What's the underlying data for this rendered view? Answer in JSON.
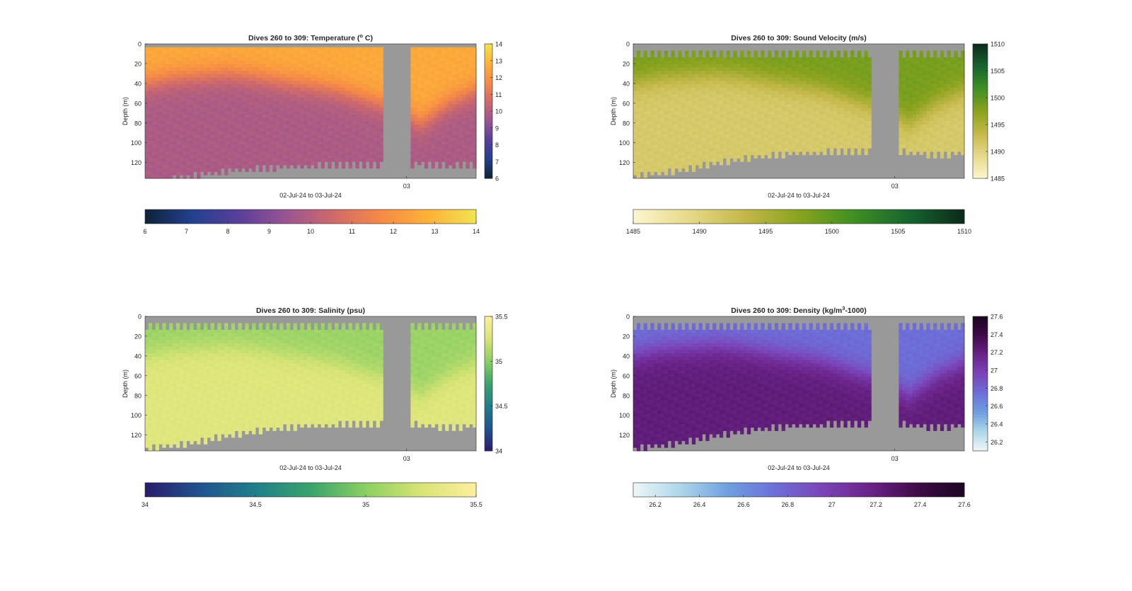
{
  "chart_data": [
    {
      "type": "heatmap",
      "variable": "temperature",
      "title": "Dives 260 to 309: Temperature (",
      "title_sup": "o",
      "title_end": " C)",
      "ylabel": "Depth (m)",
      "xlabel": "02-Jul-24 to 03-Jul-24",
      "xtick_label": "03",
      "xtick_position": 0.79,
      "yticks": [
        0,
        20,
        40,
        60,
        80,
        100,
        120
      ],
      "ylim": [
        0,
        136
      ],
      "gap": [
        0.721,
        0.8
      ],
      "colorbar_ticks": [
        6,
        7,
        8,
        9,
        10,
        11,
        12,
        13,
        14
      ],
      "colorbar_range": [
        6,
        14
      ],
      "colormap": [
        "#0f2237",
        "#23408f",
        "#5a3f9a",
        "#9a5591",
        "#d06a6a",
        "#f68a46",
        "#fdb238",
        "#f2e352"
      ],
      "surface_value": 12.6,
      "deep_value": 9.8,
      "thermocline_depth": [
        40,
        34,
        32,
        30,
        33,
        38,
        42,
        47,
        56,
        64,
        80,
        60,
        47
      ],
      "top_bins": 2,
      "bottom_depth": [
        136,
        134,
        130,
        126,
        124,
        122,
        121,
        120,
        120,
        120,
        119,
        121,
        120
      ]
    },
    {
      "type": "heatmap",
      "variable": "sound_velocity",
      "title": "Dives 260 to 309: Sound Velocity (m/s)",
      "title_sup": "",
      "title_end": "",
      "ylabel": "Depth (m)",
      "xlabel": "02-Jul-24 to 03-Jul-24",
      "xtick_label": "03",
      "xtick_position": 0.79,
      "yticks": [
        0,
        20,
        40,
        60,
        80,
        100,
        120
      ],
      "ylim": [
        0,
        136
      ],
      "gap": [
        0.721,
        0.8
      ],
      "colorbar_ticks": [
        1485,
        1490,
        1495,
        1500,
        1505,
        1510
      ],
      "colorbar_range": [
        1485,
        1510
      ],
      "colormap": [
        "#fdf6cf",
        "#e6d98a",
        "#c4b84a",
        "#8aa31e",
        "#3f8f22",
        "#16642f",
        "#0d2a1c"
      ],
      "surface_value": 1498.5,
      "deep_value": 1491.2,
      "thermocline_depth": [
        40,
        34,
        32,
        30,
        33,
        38,
        42,
        47,
        56,
        64,
        80,
        60,
        47
      ],
      "top_bins": 12,
      "bottom_depth": [
        132,
        128,
        124,
        118,
        114,
        110,
        108,
        107,
        107,
        107,
        107,
        110,
        108
      ]
    },
    {
      "type": "heatmap",
      "variable": "salinity",
      "title": "Dives 260 to 309: Salinity (psu)",
      "title_sup": "",
      "title_end": "",
      "ylabel": "Depth (m)",
      "xlabel": "02-Jul-24 to 03-Jul-24",
      "xtick_label": "03",
      "xtick_position": 0.79,
      "yticks": [
        0,
        20,
        40,
        60,
        80,
        100,
        120
      ],
      "ylim": [
        0,
        136
      ],
      "gap": [
        0.721,
        0.8
      ],
      "colorbar_ticks": [
        34,
        34.5,
        35,
        35.5
      ],
      "colorbar_ticks_right": [
        34,
        34.5,
        35,
        35.5
      ],
      "colorbar_range": [
        34,
        35.5
      ],
      "colormap": [
        "#2a1c6b",
        "#21538f",
        "#1f7f8a",
        "#3aa36c",
        "#8ccf63",
        "#d8e475",
        "#fdeea0"
      ],
      "surface_value": 35.05,
      "deep_value": 35.3,
      "thermocline_depth": [
        40,
        34,
        32,
        30,
        33,
        38,
        42,
        47,
        56,
        64,
        80,
        60,
        47
      ],
      "top_bins": 12,
      "bottom_depth": [
        132,
        128,
        124,
        118,
        114,
        110,
        108,
        107,
        107,
        107,
        107,
        110,
        108
      ]
    },
    {
      "type": "heatmap",
      "variable": "density",
      "title": "Dives 260 to 309: Density (kg/m",
      "title_sup": "3",
      "title_end": "-1000)",
      "ylabel": "Depth (m)",
      "xlabel": "02-Jul-24 to 03-Jul-24",
      "xtick_label": "03",
      "xtick_position": 0.79,
      "yticks": [
        0,
        20,
        40,
        60,
        80,
        100,
        120
      ],
      "ylim": [
        0,
        136
      ],
      "gap": [
        0.721,
        0.8
      ],
      "colorbar_ticks": [
        26.2,
        26.4,
        26.6,
        26.8,
        27,
        27.2,
        27.4,
        27.6
      ],
      "colorbar_range": [
        26.1,
        27.6
      ],
      "colormap": [
        "#eef7f7",
        "#aed6ea",
        "#6f9fe0",
        "#6d6fd8",
        "#7b44b8",
        "#6b2389",
        "#3f0b47",
        "#1c0522"
      ],
      "surface_value": 26.75,
      "deep_value": 27.22,
      "thermocline_depth": [
        40,
        34,
        32,
        30,
        33,
        38,
        42,
        47,
        56,
        64,
        80,
        60,
        47
      ],
      "top_bins": 12,
      "bottom_depth": [
        132,
        128,
        124,
        118,
        114,
        110,
        108,
        107,
        107,
        107,
        107,
        110,
        108
      ]
    }
  ]
}
